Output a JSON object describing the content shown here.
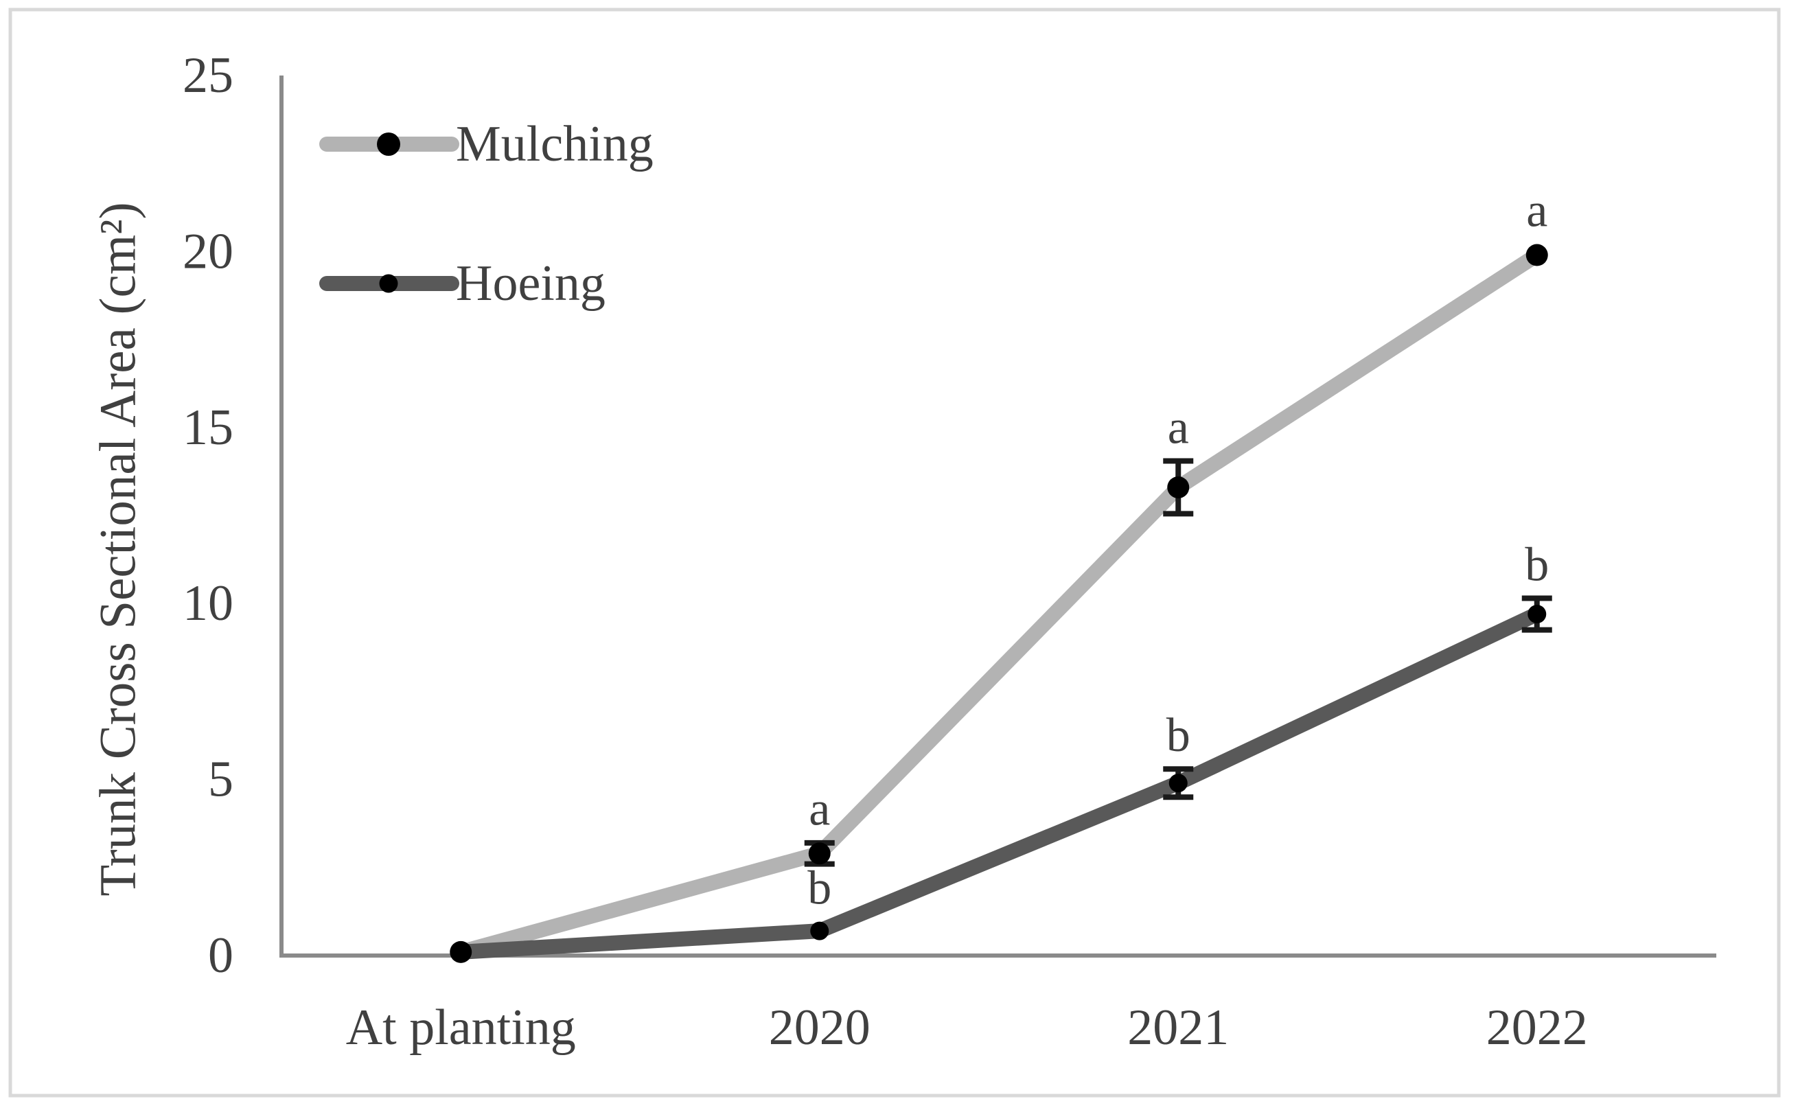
{
  "figure": {
    "background": "#ffffff",
    "border_color": "#d9d9d9"
  },
  "chart_data": {
    "type": "line",
    "title": "",
    "xlabel": "",
    "ylabel": "Trunk Cross Sectional Area (cm²)",
    "categories": [
      "At planting",
      "2020",
      "2021",
      "2022"
    ],
    "ylim": [
      0,
      25
    ],
    "yticks": [
      0,
      5,
      10,
      15,
      20,
      25
    ],
    "grid": false,
    "legend_position": "upper-left-inside",
    "axis_color": "#8a8a8a",
    "text_color": "#404040",
    "errorbar_color": "#1a1a1a",
    "marker_color": "#000000",
    "series": [
      {
        "name": "Mulching",
        "color": "#b3b3b3",
        "values": [
          0.1,
          2.9,
          13.3,
          19.9
        ],
        "error": [
          0,
          0.3,
          0.75,
          0
        ],
        "sig_letters": [
          "",
          "a",
          "a",
          "a"
        ]
      },
      {
        "name": "Hoeing",
        "color": "#595959",
        "values": [
          0.1,
          0.7,
          4.9,
          9.7
        ],
        "error": [
          0,
          0,
          0.4,
          0.45
        ],
        "sig_letters": [
          "",
          "b",
          "b",
          "b"
        ]
      }
    ]
  }
}
